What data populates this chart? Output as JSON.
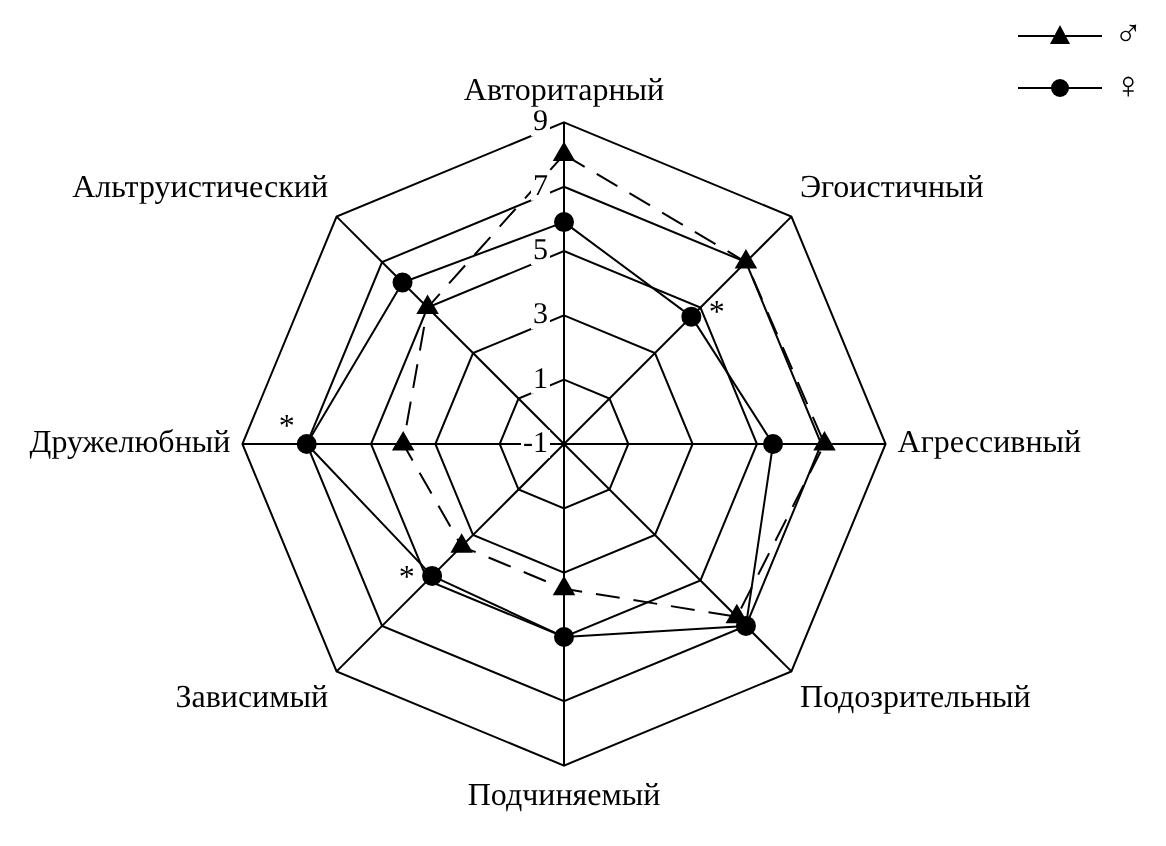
{
  "chart_data": {
    "type": "radar",
    "categories": [
      "Авторитарный",
      "Эгоистичный",
      "Агрессивный",
      "Подозрительный",
      "Подчиняемый",
      "Зависимый",
      "Дружелюбный",
      "Альтруистический"
    ],
    "series": [
      {
        "name": "♂",
        "color": "#000000",
        "values": [
          8.0,
          7.0,
          7.1,
          6.6,
          3.5,
          3.5,
          4.0,
          5.0
        ],
        "marker": "triangle",
        "line_style": "dashed"
      },
      {
        "name": "♀",
        "color": "#000000",
        "values": [
          5.9,
          4.6,
          5.5,
          7.0,
          5.0,
          4.8,
          7.0,
          6.1
        ],
        "marker": "circle",
        "line_style": "solid"
      }
    ],
    "ylim": [
      -1,
      9
    ],
    "yticks": [
      -1,
      1,
      3,
      5,
      7,
      9
    ],
    "grid": true,
    "legend": "top right",
    "annotations": [
      {
        "text": "*",
        "x": "Эгоистичный"
      },
      {
        "text": "*",
        "x": "Дружелюбный"
      },
      {
        "text": "*",
        "x": "Зависимый"
      }
    ]
  }
}
